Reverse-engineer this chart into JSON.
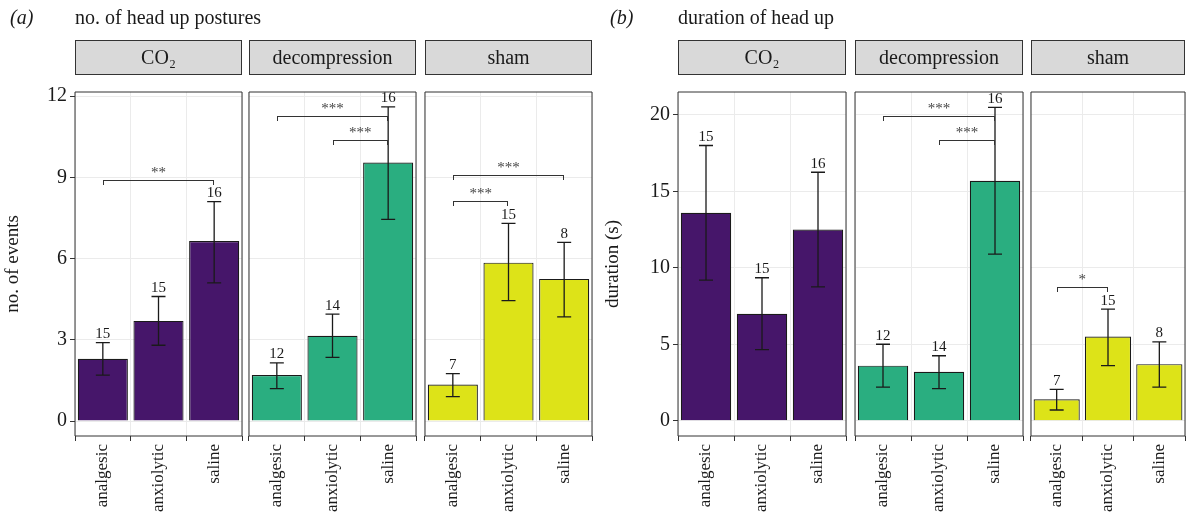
{
  "chart_data": [
    {
      "type": "bar",
      "title": "CO₂",
      "subtitle": "no. of head up postures",
      "ylabel": "no. of events",
      "categories": [
        "analgesic",
        "anxiolytic",
        "saline"
      ],
      "values": [
        2.3,
        3.7,
        6.65
      ],
      "color": "#46166a",
      "errors": [
        [
          1.7,
          2.9
        ],
        [
          2.8,
          4.6
        ],
        [
          5.1,
          8.1
        ]
      ],
      "ylim": [
        -0.55,
        12.15
      ],
      "yticks": [
        0,
        3,
        6,
        9,
        12
      ],
      "grid": true,
      "annotations": [
        "(a)",
        "**",
        {
          "text": "15",
          "x": "analgesic",
          "y": 2.9
        },
        {
          "text": "15",
          "x": "anxiolytic",
          "y": 4.6
        },
        {
          "text": "16",
          "x": "saline",
          "y": 8.1
        }
      ]
    },
    {
      "type": "bar",
      "title": "decompression",
      "categories": [
        "analgesic",
        "anxiolytic",
        "saline"
      ],
      "values": [
        1.7,
        3.15,
        9.55
      ],
      "color": "#2aae80",
      "errors": [
        [
          1.2,
          2.15
        ],
        [
          2.35,
          3.95
        ],
        [
          7.45,
          11.6
        ]
      ],
      "ylim": [
        -0.55,
        12.15
      ],
      "yticks": [
        0,
        3,
        6,
        9,
        12
      ],
      "grid": true,
      "tick_labels": "x",
      "annotations": [
        "***",
        "***",
        {
          "text": "12",
          "x": "analgesic",
          "y": 2.15
        },
        {
          "text": "14",
          "x": "anxiolytic",
          "y": 3.95
        },
        {
          "text": "16",
          "x": "saline",
          "y": 11.6
        }
      ]
    },
    {
      "type": "bar",
      "title": "sham",
      "categories": [
        "analgesic",
        "anxiolytic",
        "saline"
      ],
      "values": [
        1.35,
        5.85,
        5.25
      ],
      "color": "#dde318",
      "errors": [
        [
          0.9,
          1.75
        ],
        [
          4.45,
          7.3
        ],
        [
          3.85,
          6.6
        ]
      ],
      "ylim": [
        -0.55,
        12.15
      ],
      "yticks": [
        0,
        3,
        6,
        9,
        12
      ],
      "grid": true,
      "tick_labels": "x",
      "annotations": [
        "***",
        "***",
        {
          "text": "7",
          "x": "analgesic",
          "y": 1.75
        },
        {
          "text": "15",
          "x": "anxiolytic",
          "y": 7.3
        },
        {
          "text": "8",
          "x": "saline",
          "y": 6.6
        }
      ]
    },
    {
      "type": "bar",
      "title": "CO₂",
      "subtitle": "duration of head up",
      "ylabel": "duration (s)",
      "categories": [
        "analgesic",
        "anxiolytic",
        "saline"
      ],
      "values": [
        13.6,
        7.0,
        12.5
      ],
      "color": "#46166a",
      "errors": [
        [
          9.2,
          18.0
        ],
        [
          4.65,
          9.35
        ],
        [
          8.75,
          16.25
        ]
      ],
      "ylim": [
        -1.0,
        21.5
      ],
      "yticks": [
        0,
        5,
        10,
        15,
        20
      ],
      "grid": true,
      "annotations": [
        "(b)",
        {
          "text": "15",
          "x": "analgesic",
          "y": 18.0
        },
        {
          "text": "15",
          "x": "anxiolytic",
          "y": 9.35
        },
        {
          "text": "16",
          "x": "saline",
          "y": 16.25
        }
      ]
    },
    {
      "type": "bar",
      "title": "decompression",
      "categories": [
        "analgesic",
        "anxiolytic",
        "saline"
      ],
      "values": [
        3.6,
        3.2,
        15.7
      ],
      "color": "#2aae80",
      "errors": [
        [
          2.2,
          5.0
        ],
        [
          2.1,
          4.25
        ],
        [
          10.9,
          20.5
        ]
      ],
      "ylim": [
        -1.0,
        21.5
      ],
      "yticks": [
        0,
        5,
        10,
        15,
        20
      ],
      "grid": true,
      "tick_labels": "x",
      "annotations": [
        "***",
        "***",
        {
          "text": "12",
          "x": "analgesic",
          "y": 5.0
        },
        {
          "text": "14",
          "x": "anxiolytic",
          "y": 4.25
        },
        {
          "text": "16",
          "x": "saline",
          "y": 20.5
        }
      ]
    },
    {
      "type": "bar",
      "title": "sham",
      "categories": [
        "analgesic",
        "anxiolytic",
        "saline"
      ],
      "values": [
        1.4,
        5.5,
        3.7
      ],
      "color": "#dde318",
      "errors": [
        [
          0.7,
          2.05
        ],
        [
          3.6,
          7.3
        ],
        [
          2.2,
          5.15
        ]
      ],
      "ylim": [
        -1.0,
        21.5
      ],
      "yticks": [
        0,
        5,
        10,
        15,
        20
      ],
      "grid": true,
      "tick_labels": "x",
      "annotations": [
        "*",
        {
          "text": "7",
          "x": "analgesic",
          "y": 2.05
        },
        {
          "text": "15",
          "x": "anxiolytic",
          "y": 7.3
        },
        {
          "text": "8",
          "x": "saline",
          "y": 5.15
        }
      ]
    }
  ]
}
